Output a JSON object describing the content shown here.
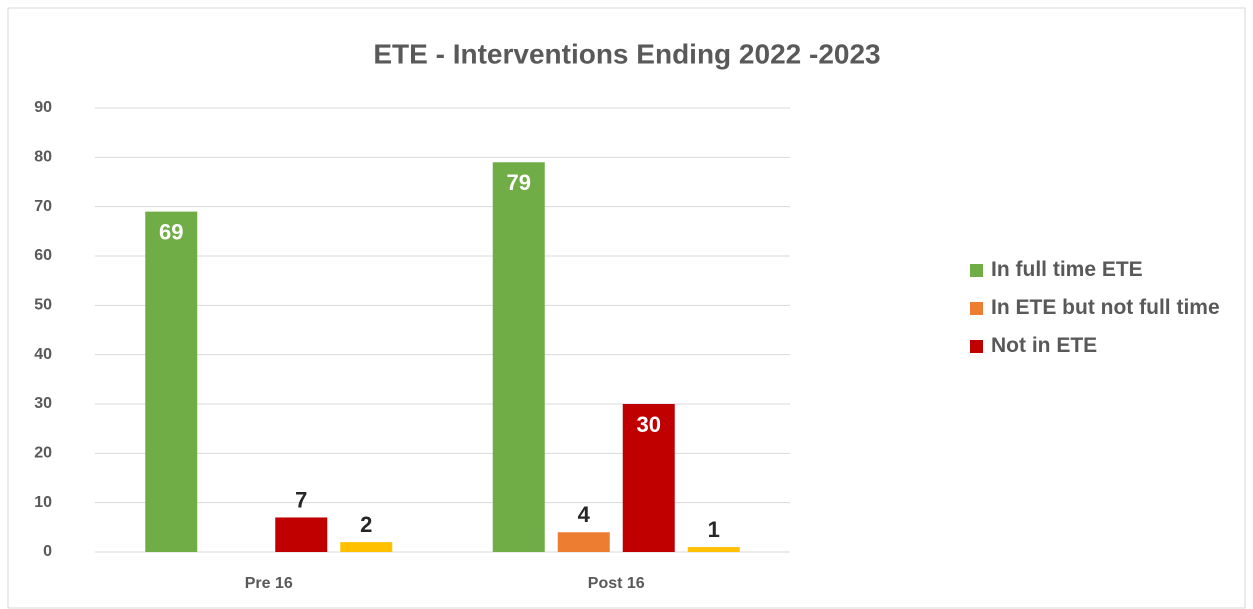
{
  "chart_data": {
    "type": "bar",
    "title": "ETE - Interventions Ending 2022 -2023",
    "categories": [
      "Pre 16",
      "Post 16"
    ],
    "series": [
      {
        "name": "In full time ETE",
        "color": "#70ad47",
        "values": [
          69,
          79
        ]
      },
      {
        "name": "In ETE but not full time",
        "color": "#ed7d31",
        "values": [
          null,
          4
        ]
      },
      {
        "name": "Not in ETE",
        "color": "#c00000",
        "values": [
          7,
          30
        ]
      },
      {
        "color": "#ffc000",
        "values": [
          2,
          1
        ]
      }
    ],
    "ylim": [
      0,
      90
    ],
    "yticks": [
      0,
      10,
      20,
      30,
      40,
      50,
      60,
      70,
      80,
      90
    ],
    "grid": true,
    "legend": "right"
  }
}
